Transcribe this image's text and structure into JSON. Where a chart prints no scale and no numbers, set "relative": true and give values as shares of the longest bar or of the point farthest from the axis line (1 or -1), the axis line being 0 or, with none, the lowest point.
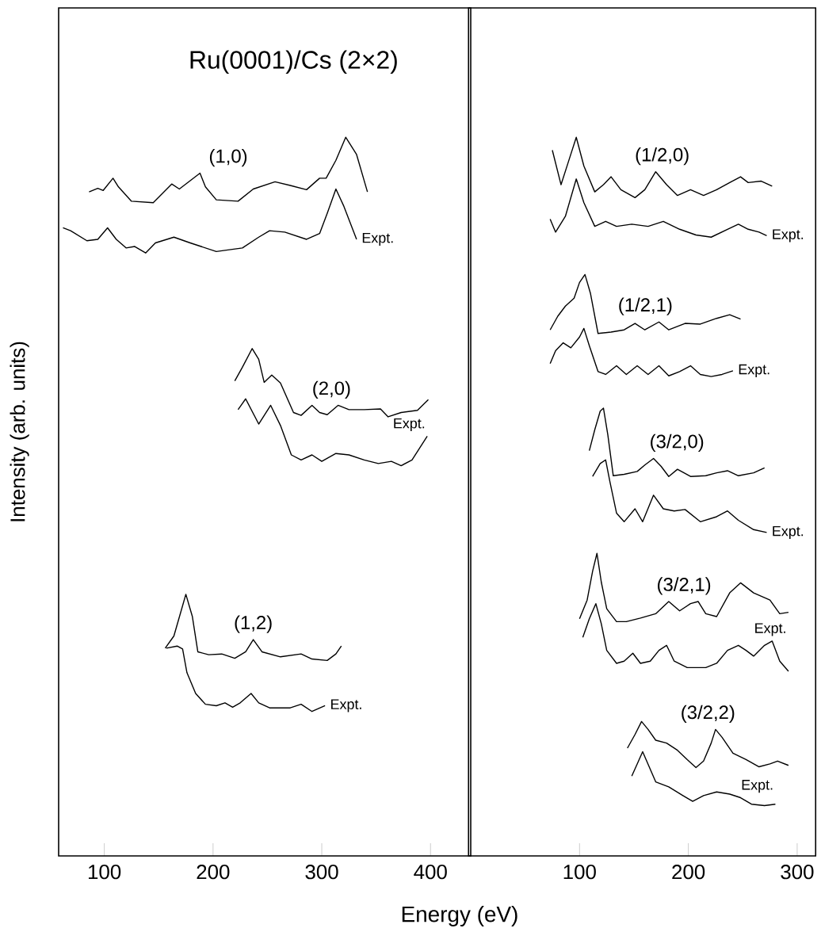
{
  "chart_data": [
    {
      "type": "line",
      "relative": true,
      "title": "Ru(0001)/Cs (2×2)",
      "xlabel": "Energy (eV)",
      "ylabel": "Intensity (arb. units)",
      "xlim": [
        58,
        437
      ],
      "xticks": [
        100,
        200,
        300,
        400
      ],
      "series": [
        {
          "name": "(1,0)",
          "color": "#000000",
          "x": [
            86,
            94,
            99,
            108,
            113,
            125,
            145,
            162,
            169,
            188,
            193,
            203,
            223,
            237,
            257,
            271,
            286,
            298,
            304,
            313,
            322,
            332,
            342
          ],
          "values": [
            0.924,
            0.929,
            0.926,
            0.943,
            0.931,
            0.911,
            0.909,
            0.935,
            0.928,
            0.95,
            0.931,
            0.913,
            0.911,
            0.928,
            0.938,
            0.933,
            0.927,
            0.943,
            0.943,
            0.968,
            1.0,
            0.976,
            0.924
          ]
        },
        {
          "name": "Expt.",
          "color": "#000000",
          "x": [
            62,
            69,
            84,
            94,
            103,
            111,
            120,
            128,
            138,
            147,
            164,
            179,
            189,
            203,
            227,
            242,
            252,
            266,
            286,
            298,
            305,
            313,
            320,
            332
          ],
          "values": [
            0.874,
            0.87,
            0.856,
            0.858,
            0.874,
            0.858,
            0.846,
            0.848,
            0.839,
            0.853,
            0.861,
            0.853,
            0.848,
            0.841,
            0.846,
            0.861,
            0.87,
            0.868,
            0.858,
            0.866,
            0.894,
            0.928,
            0.905,
            0.858
          ]
        },
        {
          "name": "(2,0)",
          "color": "#000000",
          "x": [
            220,
            227,
            236,
            242,
            247,
            254,
            262,
            274,
            281,
            291,
            298,
            305,
            315,
            325,
            339,
            354,
            361,
            373,
            388,
            398
          ],
          "values": [
            0.661,
            0.68,
            0.706,
            0.691,
            0.659,
            0.669,
            0.658,
            0.617,
            0.613,
            0.627,
            0.617,
            0.614,
            0.627,
            0.621,
            0.621,
            0.622,
            0.611,
            0.617,
            0.62,
            0.635
          ]
        },
        {
          "name": "Expt.",
          "color": "#000000",
          "x": [
            223,
            230,
            242,
            253,
            262,
            272,
            281,
            291,
            300,
            313,
            325,
            339,
            352,
            364,
            373,
            383,
            397
          ],
          "values": [
            0.621,
            0.636,
            0.601,
            0.627,
            0.599,
            0.558,
            0.551,
            0.558,
            0.549,
            0.56,
            0.558,
            0.551,
            0.546,
            0.549,
            0.543,
            0.551,
            0.584
          ]
        },
        {
          "name": "(1,2)",
          "color": "#000000",
          "x": [
            156,
            164,
            175,
            181,
            186,
            196,
            208,
            220,
            230,
            237,
            245,
            262,
            281,
            291,
            305,
            313,
            318
          ],
          "values": [
            0.289,
            0.306,
            0.364,
            0.333,
            0.284,
            0.28,
            0.281,
            0.275,
            0.284,
            0.301,
            0.284,
            0.277,
            0.281,
            0.274,
            0.272,
            0.281,
            0.292
          ]
        },
        {
          "name": "Expt.",
          "color": "#000000",
          "x": [
            157,
            167,
            172,
            176,
            184,
            193,
            203,
            211,
            218,
            225,
            235,
            242,
            252,
            271,
            281,
            291,
            303
          ],
          "values": [
            0.289,
            0.292,
            0.288,
            0.255,
            0.226,
            0.211,
            0.209,
            0.213,
            0.207,
            0.213,
            0.226,
            0.213,
            0.206,
            0.206,
            0.211,
            0.201,
            0.209
          ]
        }
      ]
    },
    {
      "type": "line",
      "relative": true,
      "xlim": [
        -2,
        317
      ],
      "xticks": [
        100,
        200,
        300
      ],
      "series": [
        {
          "name": "(1/2,0)",
          "color": "#000000",
          "x": [
            75,
            83,
            90,
            97,
            104,
            114,
            122,
            129,
            138,
            151,
            160,
            170,
            180,
            190,
            202,
            214,
            226,
            238,
            248,
            255,
            267,
            277
          ],
          "values": [
            0.982,
            0.934,
            0.967,
            1.0,
            0.96,
            0.924,
            0.934,
            0.945,
            0.927,
            0.916,
            0.927,
            0.952,
            0.934,
            0.919,
            0.927,
            0.919,
            0.927,
            0.937,
            0.945,
            0.937,
            0.939,
            0.932
          ]
        },
        {
          "name": "Expt.",
          "color": "#000000",
          "x": [
            73,
            78,
            87,
            97,
            104,
            114,
            124,
            134,
            148,
            163,
            177,
            192,
            207,
            221,
            236,
            246,
            255,
            265,
            272
          ],
          "values": [
            0.886,
            0.868,
            0.89,
            0.942,
            0.909,
            0.876,
            0.883,
            0.876,
            0.879,
            0.876,
            0.883,
            0.872,
            0.864,
            0.861,
            0.872,
            0.879,
            0.872,
            0.868,
            0.863
          ]
        },
        {
          "name": "(1/2,1)",
          "color": "#000000",
          "x": [
            73,
            80,
            87,
            95,
            100,
            105,
            110,
            117,
            129,
            141,
            151,
            160,
            173,
            182,
            197,
            211,
            226,
            238,
            248
          ],
          "values": [
            0.732,
            0.751,
            0.765,
            0.776,
            0.798,
            0.809,
            0.783,
            0.727,
            0.729,
            0.732,
            0.741,
            0.732,
            0.743,
            0.732,
            0.741,
            0.74,
            0.748,
            0.753,
            0.747
          ]
        },
        {
          "name": "Expt.",
          "color": "#000000",
          "x": [
            73,
            78,
            85,
            92,
            100,
            104,
            109,
            117,
            124,
            134,
            143,
            153,
            163,
            173,
            182,
            192,
            202,
            211,
            221,
            231,
            241
          ],
          "values": [
            0.685,
            0.703,
            0.714,
            0.707,
            0.722,
            0.734,
            0.71,
            0.674,
            0.67,
            0.682,
            0.67,
            0.682,
            0.67,
            0.682,
            0.668,
            0.674,
            0.682,
            0.67,
            0.667,
            0.67,
            0.675
          ]
        },
        {
          "name": "(3/2,0)",
          "color": "#000000",
          "x": [
            109,
            114,
            119,
            122,
            126,
            131,
            141,
            153,
            160,
            168,
            175,
            182,
            190,
            202,
            216,
            226,
            236,
            246,
            260,
            270
          ],
          "values": [
            0.564,
            0.593,
            0.619,
            0.623,
            0.586,
            0.529,
            0.531,
            0.535,
            0.544,
            0.553,
            0.542,
            0.528,
            0.538,
            0.528,
            0.529,
            0.533,
            0.536,
            0.529,
            0.533,
            0.54
          ]
        },
        {
          "name": "Expt.",
          "color": "#000000",
          "x": [
            112,
            119,
            124,
            128,
            134,
            141,
            151,
            158,
            168,
            177,
            187,
            197,
            211,
            226,
            236,
            246,
            260,
            272
          ],
          "values": [
            0.528,
            0.546,
            0.551,
            0.52,
            0.477,
            0.465,
            0.483,
            0.465,
            0.502,
            0.483,
            0.48,
            0.482,
            0.465,
            0.472,
            0.48,
            0.467,
            0.454,
            0.45
          ]
        },
        {
          "name": "(3/2,1)",
          "color": "#000000",
          "x": [
            100,
            107,
            112,
            116,
            120,
            125,
            134,
            143,
            156,
            170,
            182,
            192,
            202,
            209,
            216,
            226,
            238,
            248,
            260,
            275,
            284,
            292
          ],
          "values": [
            0.33,
            0.356,
            0.396,
            0.421,
            0.381,
            0.344,
            0.326,
            0.326,
            0.331,
            0.337,
            0.354,
            0.341,
            0.351,
            0.354,
            0.337,
            0.333,
            0.366,
            0.38,
            0.366,
            0.356,
            0.337,
            0.339
          ]
        },
        {
          "name": "Expt.",
          "color": "#000000",
          "x": [
            103,
            109,
            115,
            120,
            125,
            134,
            141,
            149,
            156,
            165,
            173,
            180,
            187,
            199,
            216,
            226,
            236,
            246,
            253,
            260,
            270,
            277,
            284,
            292
          ],
          "values": [
            0.304,
            0.33,
            0.351,
            0.323,
            0.286,
            0.268,
            0.271,
            0.282,
            0.268,
            0.271,
            0.286,
            0.293,
            0.271,
            0.262,
            0.262,
            0.268,
            0.286,
            0.293,
            0.286,
            0.278,
            0.293,
            0.299,
            0.271,
            0.257
          ]
        },
        {
          "name": "(3/2,2)",
          "color": "#000000",
          "x": [
            144,
            151,
            157,
            163,
            170,
            180,
            190,
            199,
            207,
            214,
            221,
            225,
            231,
            241,
            253,
            265,
            275,
            282,
            292
          ],
          "values": [
            0.15,
            0.169,
            0.187,
            0.176,
            0.161,
            0.157,
            0.147,
            0.134,
            0.123,
            0.132,
            0.157,
            0.176,
            0.165,
            0.143,
            0.134,
            0.124,
            0.128,
            0.132,
            0.126
          ]
        },
        {
          "name": "Expt.",
          "color": "#000000",
          "x": [
            148,
            153,
            158,
            164,
            170,
            182,
            195,
            204,
            214,
            226,
            238,
            248,
            258,
            270,
            280
          ],
          "values": [
            0.111,
            0.128,
            0.145,
            0.124,
            0.103,
            0.096,
            0.084,
            0.076,
            0.084,
            0.089,
            0.086,
            0.081,
            0.072,
            0.07,
            0.072
          ]
        }
      ]
    }
  ]
}
